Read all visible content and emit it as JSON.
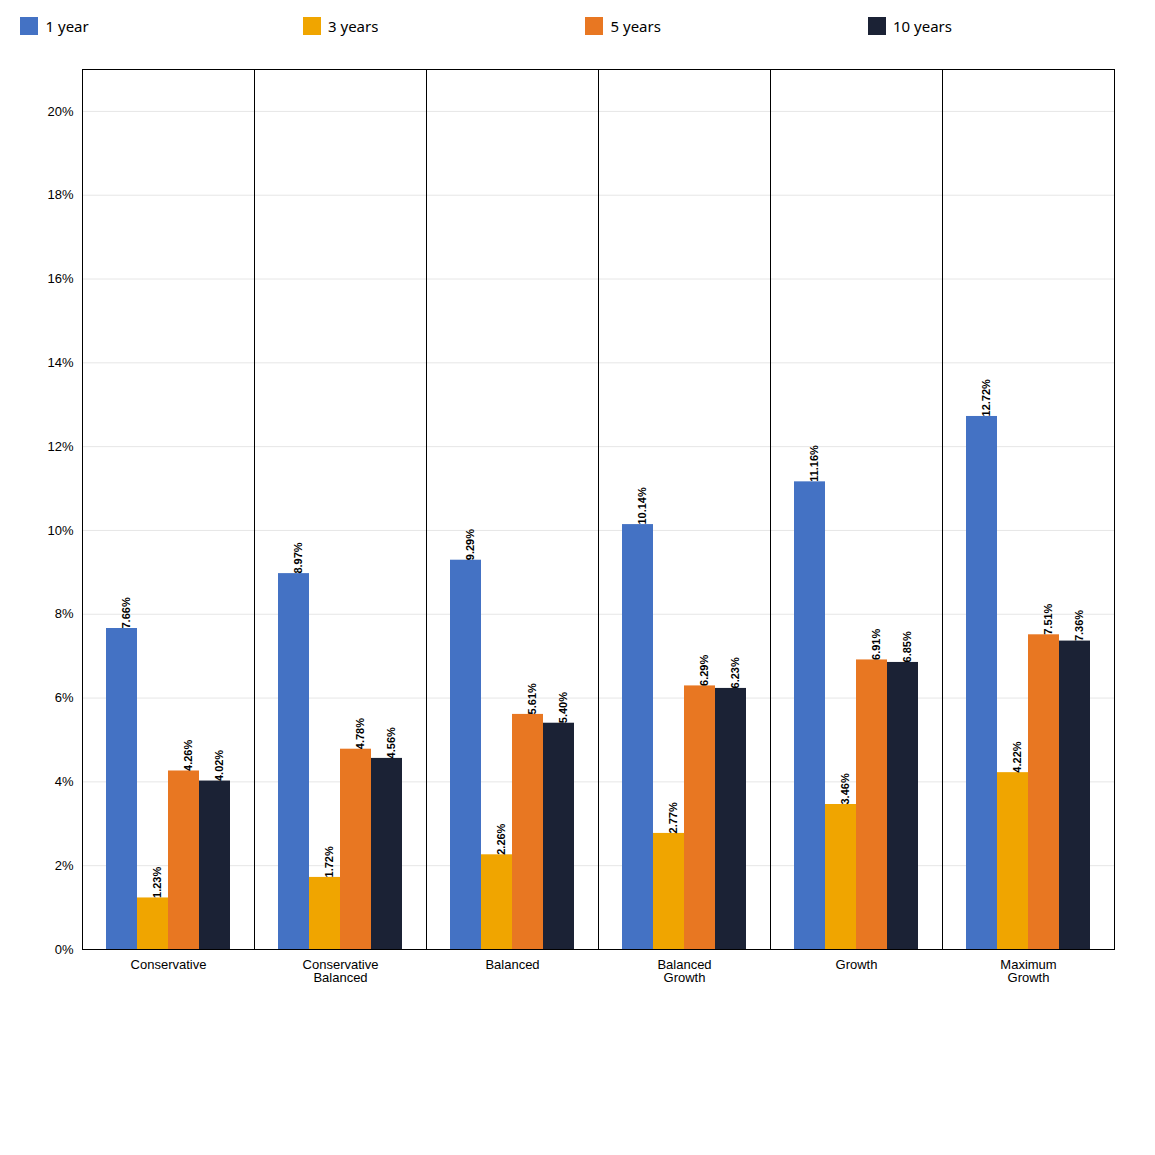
{
  "chart_data": {
    "type": "bar",
    "categories": [
      "Conservative",
      "Conservative\nBalanced",
      "Balanced",
      "Balanced\nGrowth",
      "Growth",
      "Maximum\nGrowth"
    ],
    "series": [
      {
        "name": "1 year",
        "color": "#4472C4",
        "values": [
          7.66,
          8.97,
          9.29,
          10.14,
          11.16,
          12.72
        ],
        "value_labels": [
          "7.66%",
          "8.97%",
          "9.29%",
          "10.14%",
          "11.16%",
          "12.72%"
        ]
      },
      {
        "name": "3 years",
        "color": "#F0A500",
        "values": [
          1.23,
          1.72,
          2.26,
          2.77,
          3.46,
          4.22
        ],
        "value_labels": [
          "1.23%",
          "1.72%",
          "2.26%",
          "2.77%",
          "3.46%",
          "4.22%"
        ]
      },
      {
        "name": "5 years",
        "color": "#E87722",
        "values": [
          4.26,
          4.78,
          5.61,
          6.29,
          6.91,
          7.51
        ],
        "value_labels": [
          "4.26%",
          "4.78%",
          "5.61%",
          "6.29%",
          "6.91%",
          "7.51%"
        ]
      },
      {
        "name": "10 years",
        "color": "#1B2235",
        "values": [
          4.02,
          4.56,
          5.4,
          6.23,
          6.85,
          7.36
        ],
        "value_labels": [
          "4.02%",
          "4.56%",
          "5.40%",
          "6.23%",
          "6.85%",
          "7.36%"
        ]
      }
    ],
    "ylim": [
      0,
      21
    ],
    "yticks": [
      {
        "value": 0,
        "label": "0%"
      },
      {
        "value": 2,
        "label": "2%"
      },
      {
        "value": 4,
        "label": "4%"
      },
      {
        "value": 6,
        "label": "6%"
      },
      {
        "value": 8,
        "label": "8%"
      },
      {
        "value": 10,
        "label": "10%"
      },
      {
        "value": 12,
        "label": "12%"
      },
      {
        "value": 14,
        "label": "14%"
      },
      {
        "value": 16,
        "label": "16%"
      },
      {
        "value": 18,
        "label": "18%"
      },
      {
        "value": 20,
        "label": "20%"
      }
    ],
    "grid": true,
    "legend": "upper left",
    "data_labels": true
  }
}
